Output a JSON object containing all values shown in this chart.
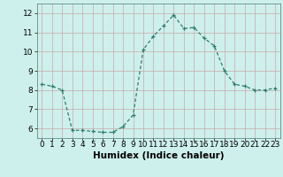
{
  "x": [
    0,
    1,
    2,
    3,
    4,
    5,
    6,
    7,
    8,
    9,
    10,
    11,
    12,
    13,
    14,
    15,
    16,
    17,
    18,
    19,
    20,
    21,
    22,
    23
  ],
  "y": [
    8.3,
    8.2,
    8.0,
    5.9,
    5.9,
    5.85,
    5.8,
    5.8,
    6.1,
    6.7,
    10.1,
    10.8,
    11.35,
    11.9,
    11.2,
    11.25,
    10.7,
    10.3,
    9.0,
    8.3,
    8.2,
    8.0,
    8.0,
    8.1
  ],
  "line_color": "#2e7d6e",
  "bg_color": "#cef0ec",
  "grid_color": "#c8a8a8",
  "xlabel": "Humidex (Indice chaleur)",
  "xlabel_fontsize": 7.5,
  "tick_fontsize": 6.5,
  "ylim": [
    5.5,
    12.5
  ],
  "xlim": [
    -0.5,
    23.5
  ],
  "yticks": [
    6,
    7,
    8,
    9,
    10,
    11,
    12
  ],
  "xticks": [
    0,
    1,
    2,
    3,
    4,
    5,
    6,
    7,
    8,
    9,
    10,
    11,
    12,
    13,
    14,
    15,
    16,
    17,
    18,
    19,
    20,
    21,
    22,
    23
  ]
}
